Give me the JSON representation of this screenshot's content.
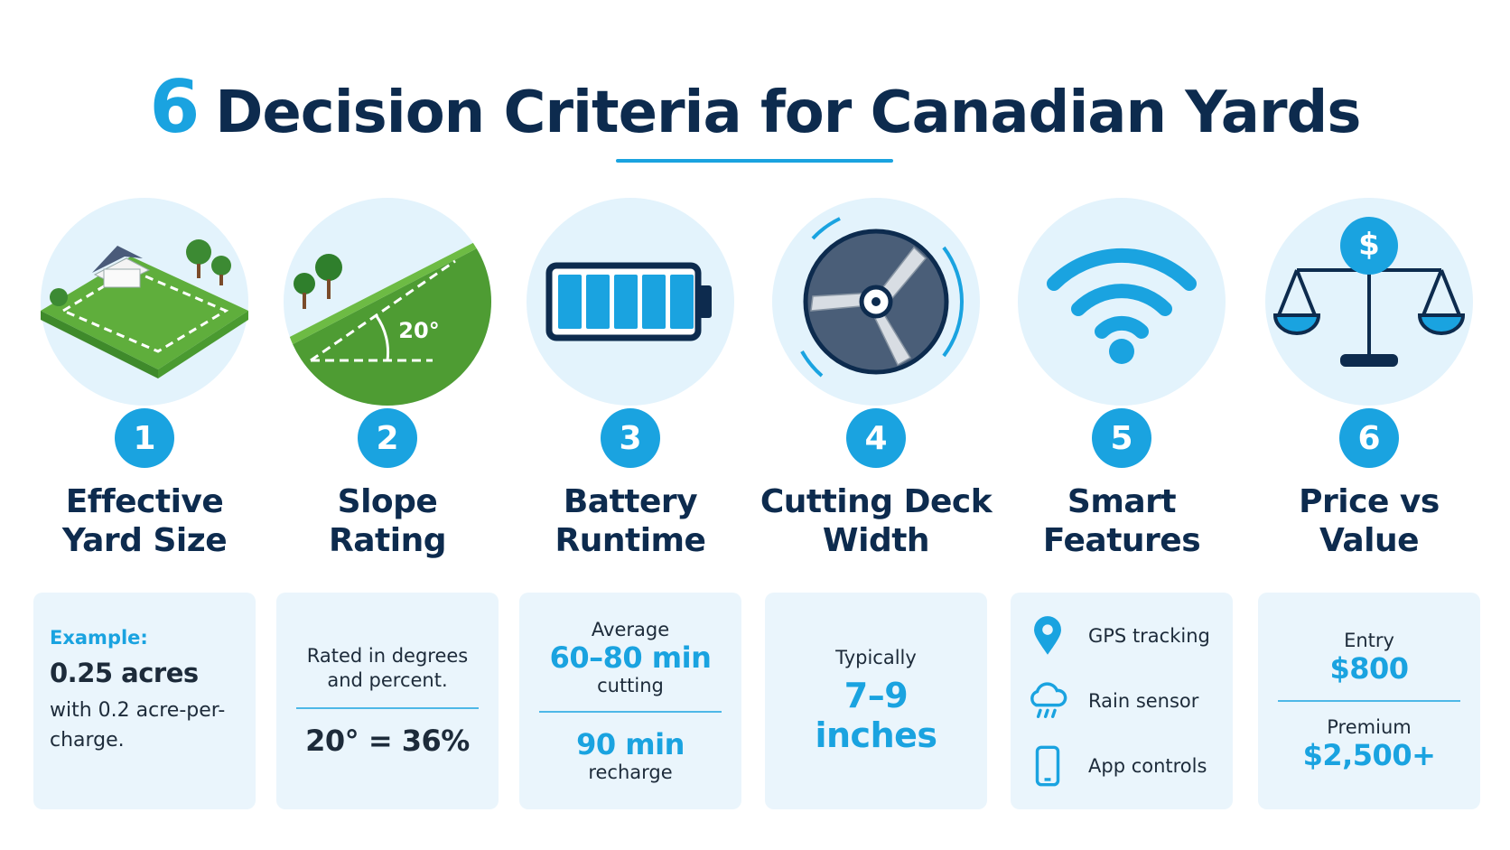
{
  "title": {
    "number": "6",
    "text": "Decision Criteria for Canadian Yards"
  },
  "criteria": [
    {
      "number": "1",
      "title": [
        "Effective",
        "Yard Size"
      ],
      "card": [
        {
          "label": "Example:",
          "value": "0.25 acres",
          "note": "with 0.2 acre-per-charge."
        }
      ]
    },
    {
      "number": "2",
      "title": [
        "Slope",
        "Rating"
      ],
      "icon_label": "20°",
      "card": [
        {
          "note": "Rated in degrees and percent."
        },
        {
          "value": "20° = 36%"
        }
      ]
    },
    {
      "number": "3",
      "title": [
        "Battery",
        "Runtime"
      ],
      "card": [
        {
          "label": "Average",
          "value": "60–80 min",
          "note": "cutting"
        },
        {
          "value": "90 min",
          "note": "recharge"
        }
      ]
    },
    {
      "number": "4",
      "title": [
        "Cutting Deck",
        "Width"
      ],
      "card": [
        {
          "label": "Typically",
          "value": "7–9 inches"
        }
      ]
    },
    {
      "number": "5",
      "title": [
        "Smart",
        "Features"
      ],
      "features": [
        "GPS tracking",
        "Rain sensor",
        "App controls"
      ]
    },
    {
      "number": "6",
      "title": [
        "Price vs",
        "Value"
      ],
      "icon_label": "$",
      "card": [
        {
          "label": "Entry",
          "value": "$800"
        },
        {
          "label": "Premium",
          "value": "$2,500+"
        }
      ]
    }
  ]
}
